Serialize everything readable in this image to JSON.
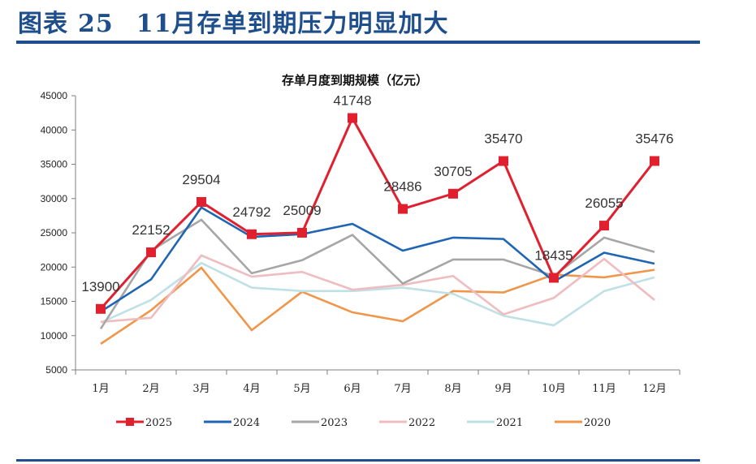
{
  "figure": {
    "label": "图表",
    "number": "25",
    "caption": "11月存单到期压力明显加大"
  },
  "chart_data": {
    "type": "line",
    "title": "存单月度到期规模（亿元）",
    "xlabel": "",
    "ylabel": "",
    "categories": [
      "1月",
      "2月",
      "3月",
      "4月",
      "5月",
      "6月",
      "7月",
      "8月",
      "9月",
      "10月",
      "11月",
      "12月"
    ],
    "ylim": [
      5000,
      45000
    ],
    "yticks": [
      5000,
      10000,
      15000,
      20000,
      25000,
      30000,
      35000,
      40000,
      45000
    ],
    "grid": false,
    "legend_position": "bottom",
    "series": [
      {
        "name": "2025",
        "color": "#e0202f",
        "marker": "square",
        "labeled": true,
        "values": [
          13900,
          22152,
          29504,
          24792,
          25009,
          41748,
          28486,
          30705,
          35470,
          18435,
          26055,
          35476
        ]
      },
      {
        "name": "2024",
        "color": "#1f65b4",
        "marker": "none",
        "labeled": false,
        "values": [
          13500,
          18200,
          28700,
          24400,
          24800,
          26300,
          22400,
          24300,
          24100,
          17900,
          22100,
          20500
        ]
      },
      {
        "name": "2023",
        "color": "#a6a6a6",
        "marker": "none",
        "labeled": false,
        "values": [
          11000,
          22400,
          26900,
          19100,
          21000,
          24700,
          17600,
          21100,
          21100,
          18700,
          24300,
          22200
        ]
      },
      {
        "name": "2022",
        "color": "#efbcbf",
        "marker": "none",
        "labeled": false,
        "values": [
          12000,
          12600,
          21700,
          18600,
          19300,
          16700,
          17400,
          18700,
          13100,
          15500,
          21200,
          15200
        ]
      },
      {
        "name": "2021",
        "color": "#bfe1e6",
        "marker": "none",
        "labeled": false,
        "values": [
          11900,
          15200,
          20600,
          17000,
          16500,
          16500,
          17000,
          16100,
          12900,
          11500,
          16500,
          18500
        ]
      },
      {
        "name": "2020",
        "color": "#f0964a",
        "marker": "none",
        "labeled": false,
        "values": [
          8800,
          13700,
          19900,
          10800,
          16400,
          13400,
          12100,
          16500,
          16300,
          18900,
          18500,
          19600
        ]
      }
    ]
  }
}
